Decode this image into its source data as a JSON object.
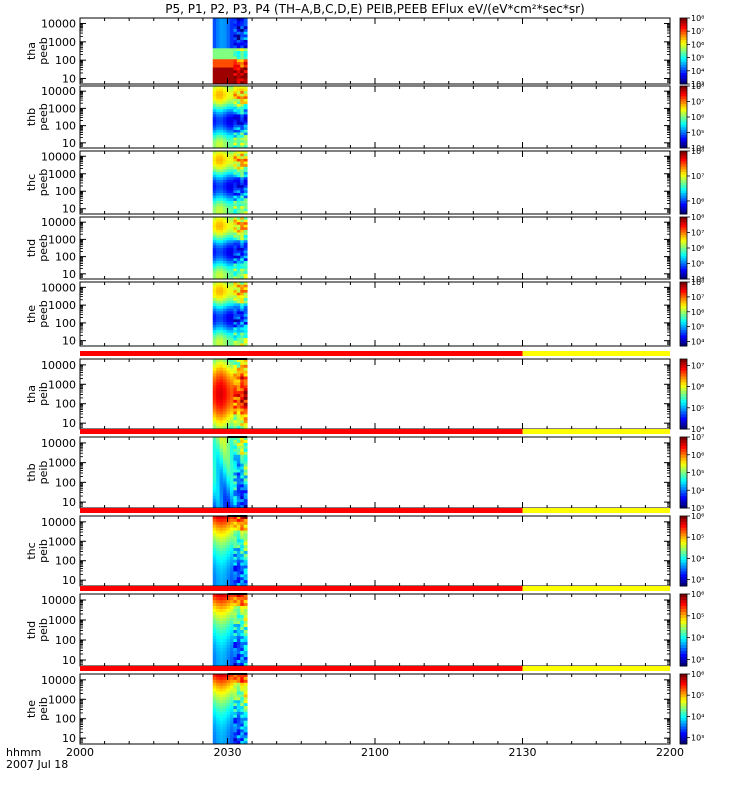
{
  "page": {
    "title": "P5, P1, P2, P3, P4 (TH–A,B,C,D,E) PEIB,PEEB EFlux eV/(eV*cm²*sec*sr)",
    "xaxis_label_1": "hhmm",
    "xaxis_label_2": "2007 Jul 18"
  },
  "chart_data": {
    "type": "heatmap",
    "x_ticks": [
      "2000",
      "2030",
      "2100",
      "2130",
      "2200"
    ],
    "x_range": [
      "2000",
      "2200"
    ],
    "y_ticks": [
      "10",
      "100",
      "1000",
      "10000"
    ],
    "y_scale": "log",
    "data_interval": [
      "2027",
      "2034"
    ],
    "colors": {
      "red": "#ff0000",
      "yellow": "#ffff00",
      "black": "#000000"
    },
    "panels": [
      {
        "name": "tha-peeb",
        "ylabel": [
          "tha",
          "peeb"
        ],
        "cbar_ticks": [
          "10³",
          "10⁴",
          "10⁵",
          "10⁶",
          "10⁷",
          "10⁸"
        ],
        "cbar_range": [
          1000,
          100000000
        ],
        "profile": "peeb_a"
      },
      {
        "name": "thb-peeb",
        "ylabel": [
          "thb",
          "peeb"
        ],
        "cbar_ticks": [
          "10⁴",
          "10⁵",
          "10⁶",
          "10⁷",
          "10⁸"
        ],
        "cbar_range": [
          10000,
          100000000
        ],
        "profile": "peeb"
      },
      {
        "name": "thc-peeb",
        "ylabel": [
          "thc",
          "peeb"
        ],
        "cbar_ticks": [
          "10⁶",
          "10⁷",
          "10⁸"
        ],
        "cbar_range": [
          300000,
          100000000
        ],
        "profile": "peeb"
      },
      {
        "name": "thd-peeb",
        "ylabel": [
          "thd",
          "peeb"
        ],
        "cbar_ticks": [
          "10⁴",
          "10⁵",
          "10⁶",
          "10⁷",
          "10⁸"
        ],
        "cbar_range": [
          10000,
          100000000
        ],
        "profile": "peeb"
      },
      {
        "name": "the-peeb",
        "ylabel": [
          "the",
          "peeb"
        ],
        "cbar_ticks": [
          "10⁴",
          "10⁵",
          "10⁶",
          "10⁷",
          "10⁸"
        ],
        "cbar_range": [
          5000,
          100000000
        ],
        "profile": "peeb"
      },
      {
        "name": "tha-peib",
        "ylabel": [
          "tha",
          "peib"
        ],
        "cbar_ticks": [
          "10⁴",
          "10⁵",
          "10⁶",
          "10⁷"
        ],
        "cbar_range": [
          10000,
          20000000
        ],
        "profile": "peib_a"
      },
      {
        "name": "thb-peib",
        "ylabel": [
          "thb",
          "peib"
        ],
        "cbar_ticks": [
          "10³",
          "10⁴",
          "10⁵",
          "10⁶",
          "10⁷"
        ],
        "cbar_range": [
          1000,
          10000000
        ],
        "profile": "peib_b"
      },
      {
        "name": "thc-peib",
        "ylabel": [
          "thc",
          "peib"
        ],
        "cbar_ticks": [
          "10³",
          "10⁴",
          "10⁵",
          "10⁶"
        ],
        "cbar_range": [
          500,
          1000000
        ],
        "profile": "peib"
      },
      {
        "name": "thd-peib",
        "ylabel": [
          "thd",
          "peib"
        ],
        "cbar_ticks": [
          "10³",
          "10⁴",
          "10⁵",
          "10⁶"
        ],
        "cbar_range": [
          500,
          1000000
        ],
        "profile": "peib"
      },
      {
        "name": "the-peib",
        "ylabel": [
          "the",
          "peib"
        ],
        "cbar_ticks": [
          "10³",
          "10⁴",
          "10⁵",
          "10⁶"
        ],
        "cbar_range": [
          500,
          1000000
        ],
        "profile": "peib"
      }
    ],
    "flag_bars": [
      {
        "after_panel": 5,
        "segments": [
          {
            "from": "2000",
            "to": "2130",
            "color": "red"
          },
          {
            "from": "2130",
            "to": "2200",
            "color": "yellow"
          }
        ]
      },
      {
        "after_panel": 6,
        "segments": [
          {
            "from": "2000",
            "to": "2130",
            "color": "red"
          },
          {
            "from": "2130",
            "to": "2200",
            "color": "yellow"
          }
        ]
      },
      {
        "after_panel": 7,
        "segments": [
          {
            "from": "2000",
            "to": "2130",
            "color": "red"
          },
          {
            "from": "2130",
            "to": "2200",
            "color": "yellow"
          }
        ]
      },
      {
        "after_panel": 8,
        "segments": [
          {
            "from": "2000",
            "to": "2130",
            "color": "red"
          },
          {
            "from": "2130",
            "to": "2200",
            "color": "yellow"
          }
        ]
      },
      {
        "after_panel": 9,
        "segments": [
          {
            "from": "2000",
            "to": "2130",
            "color": "red"
          },
          {
            "from": "2130",
            "to": "2200",
            "color": "yellow"
          }
        ]
      }
    ]
  }
}
